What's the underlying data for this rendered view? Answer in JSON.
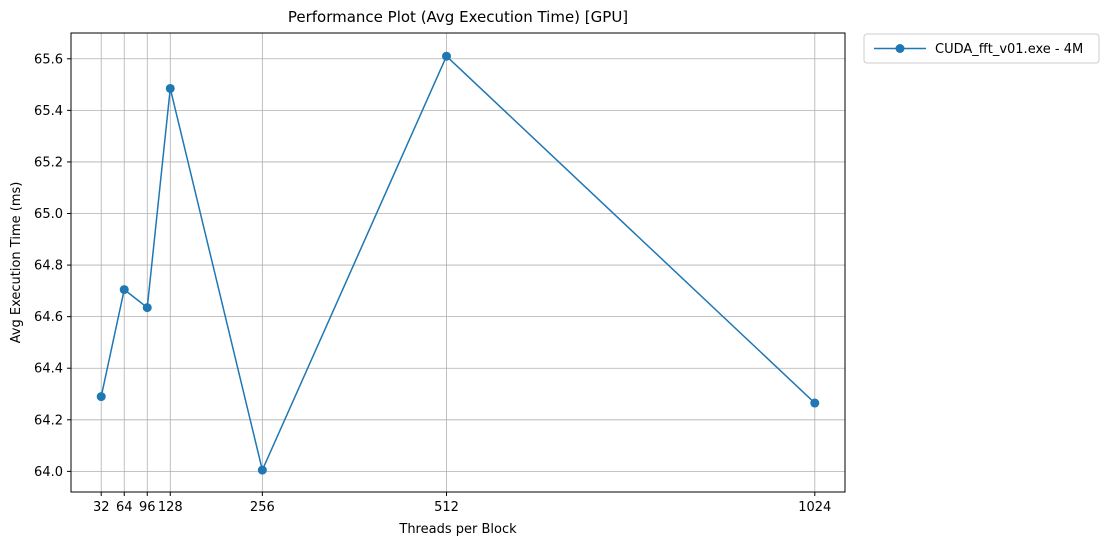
{
  "chart_data": {
    "type": "line",
    "title": "Performance Plot (Avg Execution Time) [GPU]",
    "xlabel": "Threads per Block",
    "ylabel": "Avg Execution Time (ms)",
    "x": [
      32,
      64,
      96,
      128,
      256,
      512,
      1024
    ],
    "x_tick_labels": [
      "32",
      "64",
      "96",
      "128",
      "256",
      "512",
      "1024"
    ],
    "xlim": [
      -10,
      1066
    ],
    "ylim": [
      63.92,
      65.7
    ],
    "y_ticks": [
      64.0,
      64.2,
      64.4,
      64.6,
      64.8,
      65.0,
      65.2,
      65.4,
      65.6
    ],
    "y_tick_labels": [
      "64.0",
      "64.2",
      "64.4",
      "64.6",
      "64.8",
      "65.0",
      "65.2",
      "65.4",
      "65.6"
    ],
    "grid": true,
    "legend_position": "outside-top-right",
    "series": [
      {
        "name": "CUDA_fft_v01.exe - 4M",
        "color": "#1f77b4",
        "marker": "circle",
        "values": [
          64.29,
          64.705,
          64.635,
          65.485,
          64.005,
          65.61,
          64.265
        ]
      }
    ]
  }
}
